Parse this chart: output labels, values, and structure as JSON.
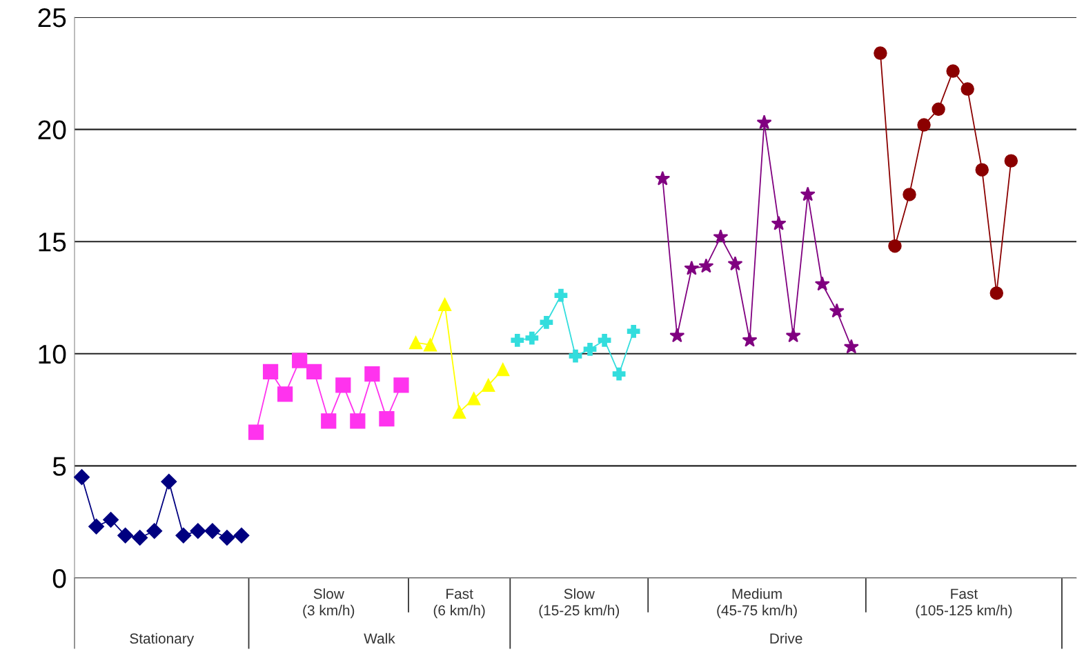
{
  "chart_data": {
    "type": "line",
    "categories": [
      null,
      null,
      null,
      null,
      null,
      null,
      null,
      null,
      null,
      null,
      null,
      null,
      null,
      null,
      null,
      null,
      null,
      null,
      null,
      null,
      null,
      null,
      null,
      null,
      null,
      null,
      null,
      null,
      null,
      null,
      null,
      null,
      null,
      null,
      null,
      null,
      null,
      null,
      null,
      null,
      null,
      null,
      null,
      null,
      null,
      null,
      null,
      null,
      null,
      null,
      null,
      null,
      null,
      null,
      null,
      null,
      null,
      null,
      null,
      null,
      null,
      null,
      null,
      null,
      null,
      null,
      null,
      null,
      null
    ],
    "series": [
      {
        "color": "#000080",
        "marker": "diamond",
        "values": [
          4.5,
          2.3,
          2.6,
          1.9,
          1.8,
          2.1,
          4.3,
          1.9,
          2.1,
          2.1,
          1.8,
          1.9,
          null,
          null,
          null,
          null,
          null,
          null,
          null,
          null,
          null,
          null,
          null,
          null,
          null,
          null,
          null,
          null,
          null,
          null,
          null,
          null,
          null,
          null,
          null,
          null,
          null,
          null,
          null,
          null,
          null,
          null,
          null,
          null,
          null,
          null,
          null,
          null,
          null,
          null,
          null,
          null,
          null,
          null,
          null,
          null,
          null,
          null,
          null,
          null,
          null,
          null,
          null,
          null,
          null,
          null,
          null,
          null,
          null
        ]
      },
      {
        "color": "#ff33ee",
        "marker": "square",
        "values": [
          null,
          null,
          null,
          null,
          null,
          null,
          null,
          null,
          null,
          null,
          null,
          null,
          6.5,
          9.2,
          8.2,
          9.7,
          9.2,
          7.0,
          8.6,
          7.0,
          9.1,
          7.1,
          8.6,
          null,
          null,
          null,
          null,
          null,
          null,
          null,
          null,
          null,
          null,
          null,
          null,
          null,
          null,
          null,
          null,
          null,
          null,
          null,
          null,
          null,
          null,
          null,
          null,
          null,
          null,
          null,
          null,
          null,
          null,
          null,
          null,
          null,
          null,
          null,
          null,
          null,
          null,
          null,
          null,
          null,
          null,
          null,
          null,
          null,
          null
        ]
      },
      {
        "color": "#ffff00",
        "marker": "triangle",
        "values": [
          null,
          null,
          null,
          null,
          null,
          null,
          null,
          null,
          null,
          null,
          null,
          null,
          null,
          null,
          null,
          null,
          null,
          null,
          null,
          null,
          null,
          null,
          null,
          10.5,
          10.4,
          12.2,
          7.4,
          8.0,
          8.6,
          9.3,
          null,
          null,
          null,
          null,
          null,
          null,
          null,
          null,
          null,
          null,
          null,
          null,
          null,
          null,
          null,
          null,
          null,
          null,
          null,
          null,
          null,
          null,
          null,
          null,
          null,
          null,
          null,
          null,
          null,
          null,
          null,
          null,
          null,
          null,
          null,
          null,
          null,
          null,
          null
        ]
      },
      {
        "color": "#33dddd",
        "marker": "cross",
        "values": [
          null,
          null,
          null,
          null,
          null,
          null,
          null,
          null,
          null,
          null,
          null,
          null,
          null,
          null,
          null,
          null,
          null,
          null,
          null,
          null,
          null,
          null,
          null,
          null,
          null,
          null,
          null,
          null,
          null,
          null,
          10.6,
          10.7,
          11.4,
          12.6,
          9.9,
          10.2,
          10.6,
          9.1,
          11.0,
          null,
          null,
          null,
          null,
          null,
          null,
          null,
          null,
          null,
          null,
          null,
          null,
          null,
          null,
          null,
          null,
          null,
          null,
          null,
          null,
          null,
          null,
          null,
          null,
          null,
          null,
          null,
          null,
          null,
          null
        ]
      },
      {
        "color": "#800080",
        "marker": "star",
        "values": [
          null,
          null,
          null,
          null,
          null,
          null,
          null,
          null,
          null,
          null,
          null,
          null,
          null,
          null,
          null,
          null,
          null,
          null,
          null,
          null,
          null,
          null,
          null,
          null,
          null,
          null,
          null,
          null,
          null,
          null,
          null,
          null,
          null,
          null,
          null,
          null,
          null,
          null,
          null,
          null,
          17.8,
          10.8,
          13.8,
          13.9,
          15.2,
          14.0,
          10.6,
          20.3,
          15.8,
          10.8,
          17.1,
          13.1,
          11.9,
          10.3,
          null,
          null,
          null,
          null,
          null,
          null,
          null,
          null,
          null,
          null,
          null,
          null,
          null,
          null,
          null
        ]
      },
      {
        "color": "#8b0000",
        "marker": "circle",
        "values": [
          null,
          null,
          null,
          null,
          null,
          null,
          null,
          null,
          null,
          null,
          null,
          null,
          null,
          null,
          null,
          null,
          null,
          null,
          null,
          null,
          null,
          null,
          null,
          null,
          null,
          null,
          null,
          null,
          null,
          null,
          null,
          null,
          null,
          null,
          null,
          null,
          null,
          null,
          null,
          null,
          null,
          null,
          null,
          null,
          null,
          null,
          null,
          null,
          null,
          null,
          null,
          null,
          null,
          null,
          null,
          23.4,
          14.8,
          17.1,
          20.2,
          20.9,
          22.6,
          21.8,
          18.2,
          12.7,
          18.6,
          null,
          null,
          null,
          null
        ]
      }
    ],
    "ylim": [
      0,
      25
    ],
    "yticks": [
      0,
      5,
      10,
      15,
      20,
      25
    ],
    "grid": "y",
    "annotations": [
      "Stationary",
      "Slow\n(3 km/h)",
      "Fast\n(6 km/h)",
      "Slow\n(15-25 km/h)",
      "Medium\n(45-75 km/h)",
      "Fast\n(105-125 km/h)",
      "Walk",
      "Drive"
    ]
  }
}
